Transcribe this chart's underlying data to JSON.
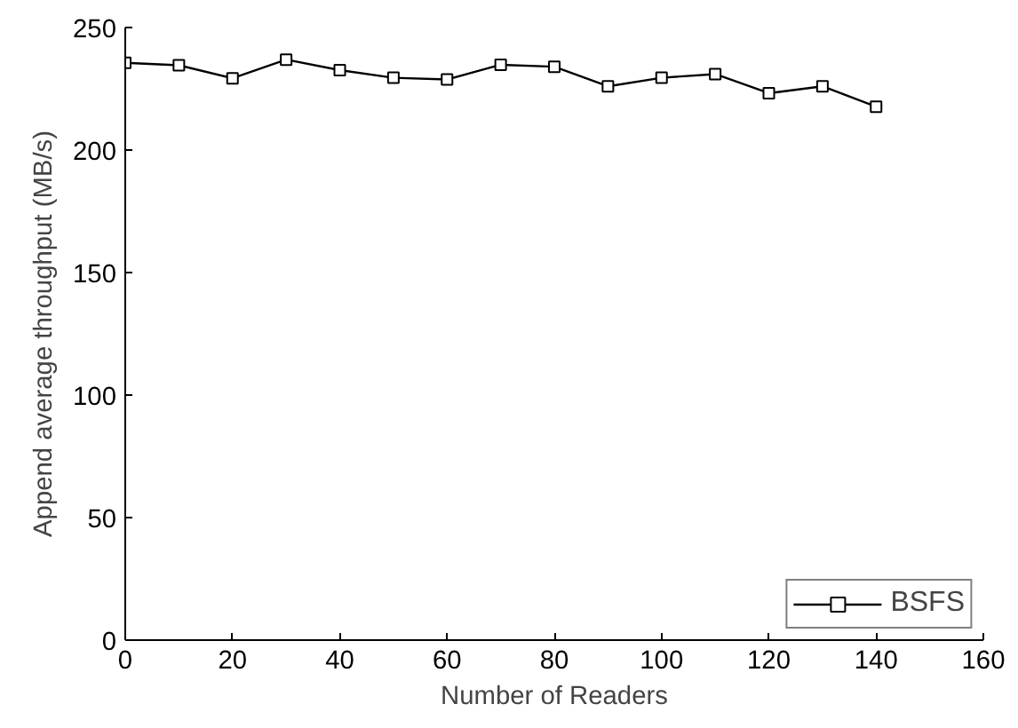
{
  "chart_data": {
    "type": "line",
    "xlabel": "Number of Readers",
    "ylabel": "Append average throughput (MB/s)",
    "x": [
      0,
      10,
      20,
      30,
      40,
      50,
      60,
      70,
      80,
      90,
      100,
      110,
      120,
      130,
      140
    ],
    "series": [
      {
        "name": "BSFS",
        "color": "#000000",
        "values": [
          235.6,
          234.6,
          229.3,
          236.9,
          232.6,
          229.5,
          228.8,
          234.8,
          234,
          226,
          229.5,
          231,
          223.2,
          226,
          217.7
        ]
      }
    ],
    "xlim": [
      0,
      160
    ],
    "ylim": [
      0,
      250
    ],
    "xticks": [
      0,
      20,
      40,
      60,
      80,
      100,
      120,
      140,
      160
    ],
    "yticks": [
      0,
      50,
      100,
      150,
      200,
      250
    ],
    "grid": false,
    "legend": "bottom right",
    "marker": "square",
    "line_style": "solid"
  }
}
